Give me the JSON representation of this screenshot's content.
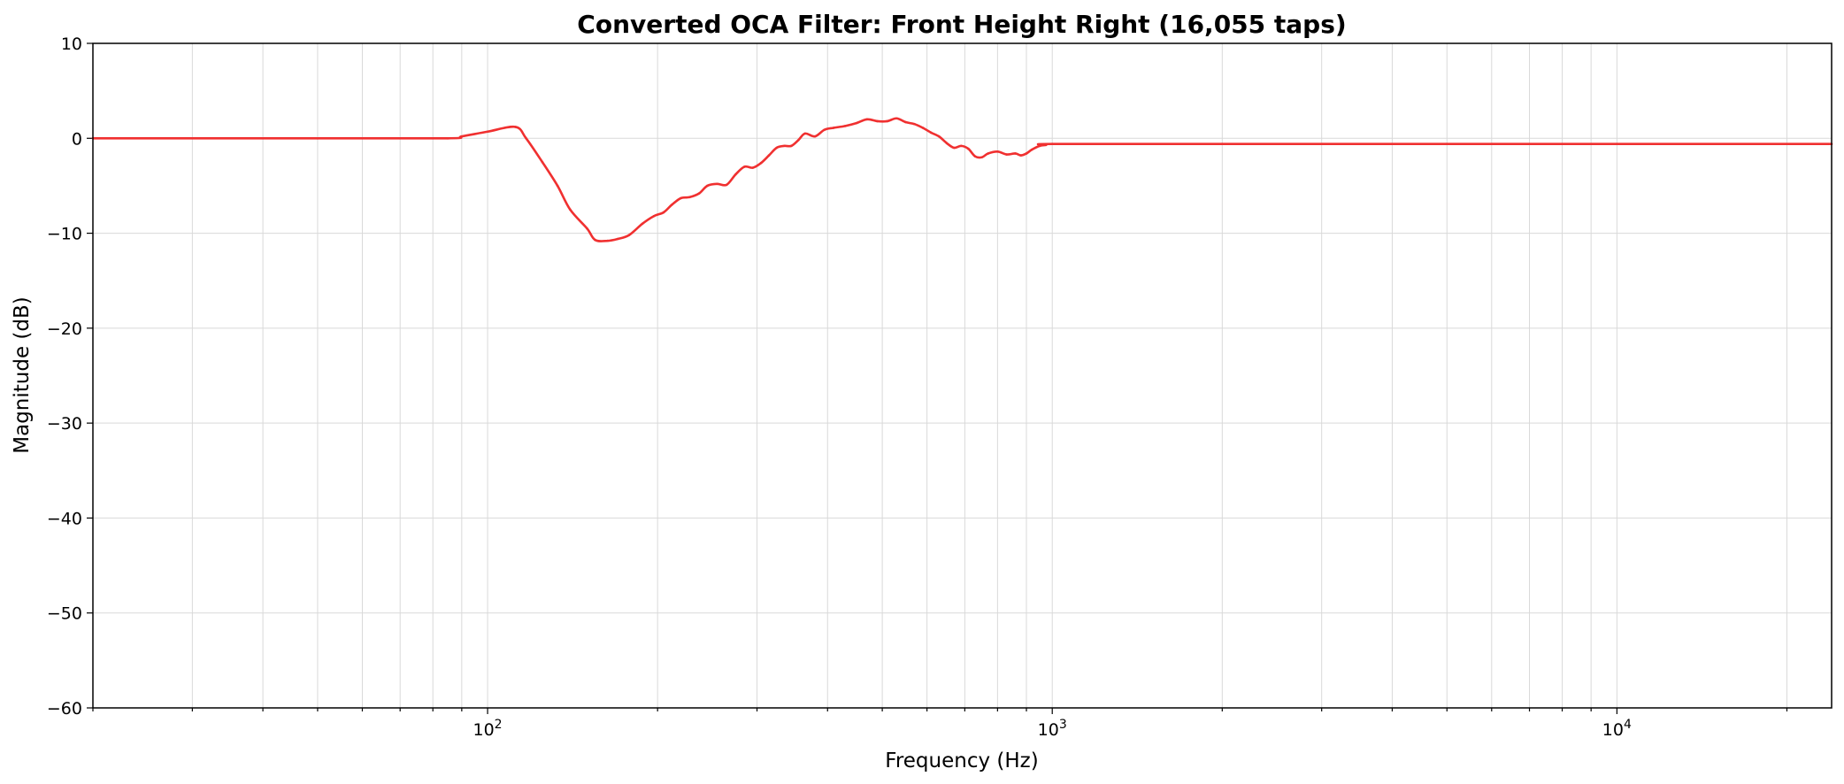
{
  "chart_data": {
    "type": "line",
    "title": "Converted OCA Filter: Front Height Right (16,055 taps)",
    "xlabel": "Frequency (Hz)",
    "ylabel": "Magnitude (dB)",
    "xscale": "log",
    "xlim": [
      20,
      24000
    ],
    "ylim": [
      -60,
      10
    ],
    "grid": true,
    "yticks": [
      10,
      0,
      -10,
      -20,
      -30,
      -40,
      -50,
      -60
    ],
    "ytick_labels": [
      "10",
      "0",
      "−10",
      "−20",
      "−30",
      "−40",
      "−50",
      "−60"
    ],
    "xticks": [
      {
        "value": 100,
        "base": "10",
        "exp": "2"
      },
      {
        "value": 1000,
        "base": "10",
        "exp": "3"
      },
      {
        "value": 10000,
        "base": "10",
        "exp": "4"
      }
    ],
    "series": [
      {
        "color": "#f03030",
        "x": [
          20,
          50,
          85,
          90,
          100,
          112,
          117,
          125,
          133,
          140,
          150,
          155,
          163,
          170,
          178,
          188,
          197,
          205,
          212,
          220,
          228,
          237,
          245,
          255,
          265,
          275,
          285,
          295,
          305,
          315,
          325,
          335,
          345,
          355,
          365,
          380,
          395,
          410,
          430,
          450,
          470,
          490,
          510,
          530,
          550,
          570,
          590,
          610,
          630,
          650,
          670,
          690,
          710,
          730,
          750,
          770,
          800,
          830,
          860,
          880,
          900,
          920,
          950,
          975,
          1000,
          2000,
          5000,
          10000,
          24000
        ],
        "y": [
          0,
          0,
          0,
          0.2,
          0.7,
          1.2,
          0,
          -2.5,
          -5,
          -7.5,
          -9.5,
          -10.7,
          -10.8,
          -10.6,
          -10.2,
          -9,
          -8.2,
          -7.8,
          -7,
          -6.3,
          -6.2,
          -5.8,
          -5,
          -4.8,
          -4.9,
          -3.8,
          -3,
          -3.1,
          -2.6,
          -1.8,
          -1,
          -0.8,
          -0.8,
          -0.2,
          0.5,
          0.2,
          0.9,
          1.1,
          1.3,
          1.6,
          2,
          1.8,
          1.8,
          2.1,
          1.7,
          1.5,
          1.1,
          0.6,
          0.2,
          -0.5,
          -1,
          -0.8,
          -1.1,
          -1.9,
          -2,
          -1.6,
          -1.4,
          -1.7,
          -1.6,
          -1.8,
          -1.6,
          -1.2,
          -0.8,
          -0.7,
          -0.6,
          -0.6,
          -0.6,
          -0.6,
          -0.6
        ]
      }
    ]
  }
}
